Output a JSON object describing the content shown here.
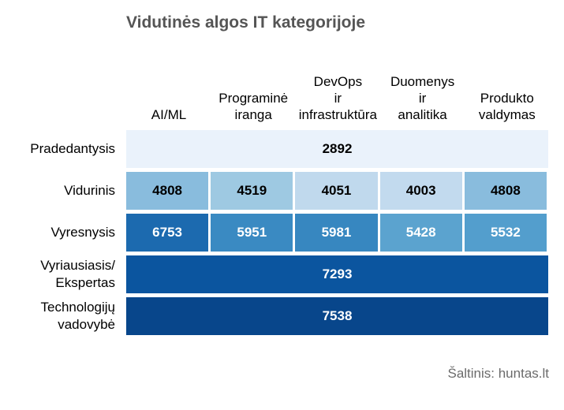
{
  "chart_data": {
    "type": "heatmap",
    "title": "Vidutinės algos IT kategorijoje",
    "columns": [
      "AI/ML",
      "Programinė\niranga",
      "DevOps\nir\ninfrastruktūra",
      "Duomenys\nir\nanalitika",
      "Produkto\nvaldymas"
    ],
    "rows": [
      {
        "label": "Pradedantysis",
        "merged": true,
        "value": 2892,
        "color": "#eaf2fb",
        "text_color": "#000000"
      },
      {
        "label": "Vidurinis",
        "merged": false,
        "cells": [
          {
            "value": 4808,
            "color": "#89bcdd",
            "text_color": "#000000"
          },
          {
            "value": 4519,
            "color": "#9ec9e2",
            "text_color": "#000000"
          },
          {
            "value": 4051,
            "color": "#c0d9ed",
            "text_color": "#000000"
          },
          {
            "value": 4003,
            "color": "#c2daee",
            "text_color": "#000000"
          },
          {
            "value": 4808,
            "color": "#89bcdd",
            "text_color": "#000000"
          }
        ]
      },
      {
        "label": "Vyresnysis",
        "merged": false,
        "cells": [
          {
            "value": 6753,
            "color": "#1c6aaf",
            "text_color": "#ffffff"
          },
          {
            "value": 5951,
            "color": "#3a8ac2",
            "text_color": "#ffffff"
          },
          {
            "value": 5981,
            "color": "#3787c0",
            "text_color": "#ffffff"
          },
          {
            "value": 5428,
            "color": "#5ba3cf",
            "text_color": "#ffffff"
          },
          {
            "value": 5532,
            "color": "#539ecd",
            "text_color": "#ffffff"
          }
        ]
      },
      {
        "label": "Vyriausiasis/\nEkspertas",
        "merged": true,
        "value": 7293,
        "color": "#0b559f",
        "text_color": "#ffffff"
      },
      {
        "label": "Technologijų\nvadovybė",
        "merged": true,
        "value": 7538,
        "color": "#08468b",
        "text_color": "#ffffff"
      }
    ],
    "source": "Šaltinis: huntas.lt"
  }
}
